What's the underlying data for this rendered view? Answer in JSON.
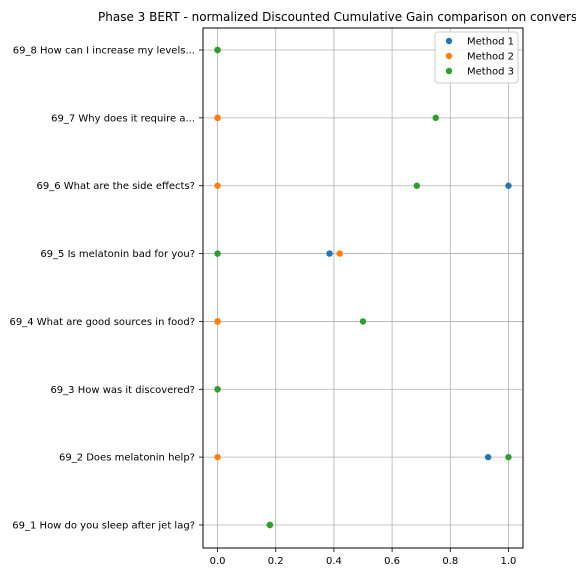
{
  "chart_data": {
    "type": "scatter",
    "title": "Phase 3 BERT - normalized Discounted Cumulative Gain comparison on convers",
    "xlabel": "",
    "ylabel": "",
    "xlim": [
      -0.05,
      1.05
    ],
    "xticks": [
      0.0,
      0.2,
      0.4,
      0.6,
      0.8,
      1.0
    ],
    "xtick_labels": [
      "0.0",
      "0.2",
      "0.4",
      "0.6",
      "0.8",
      "1.0"
    ],
    "categories": [
      "69_1 How do you sleep after jet lag?",
      "69_2 Does melatonin help?",
      "69_3 How was it discovered?",
      "69_4 What are good sources in food?",
      "69_5 Is melatonin bad for you?",
      "69_6 What are the side effects?",
      "69_7 Why does it require a...",
      "69_8 How can I increase my levels..."
    ],
    "grid": true,
    "legend_position": "top-right",
    "series": [
      {
        "name": "Method 1",
        "color": "#1f77b4",
        "values": [
          0.18,
          0.93,
          0.0,
          0.0,
          0.385,
          1.0,
          0.0,
          0.0
        ]
      },
      {
        "name": "Method 2",
        "color": "#ff7f0e",
        "values": [
          0.18,
          0.0,
          0.0,
          0.0,
          0.42,
          0.0,
          0.0,
          0.0
        ]
      },
      {
        "name": "Method 3",
        "color": "#2ca02c",
        "values": [
          0.18,
          1.0,
          0.0,
          0.5,
          0.0,
          0.685,
          0.75,
          0.0
        ]
      }
    ]
  }
}
